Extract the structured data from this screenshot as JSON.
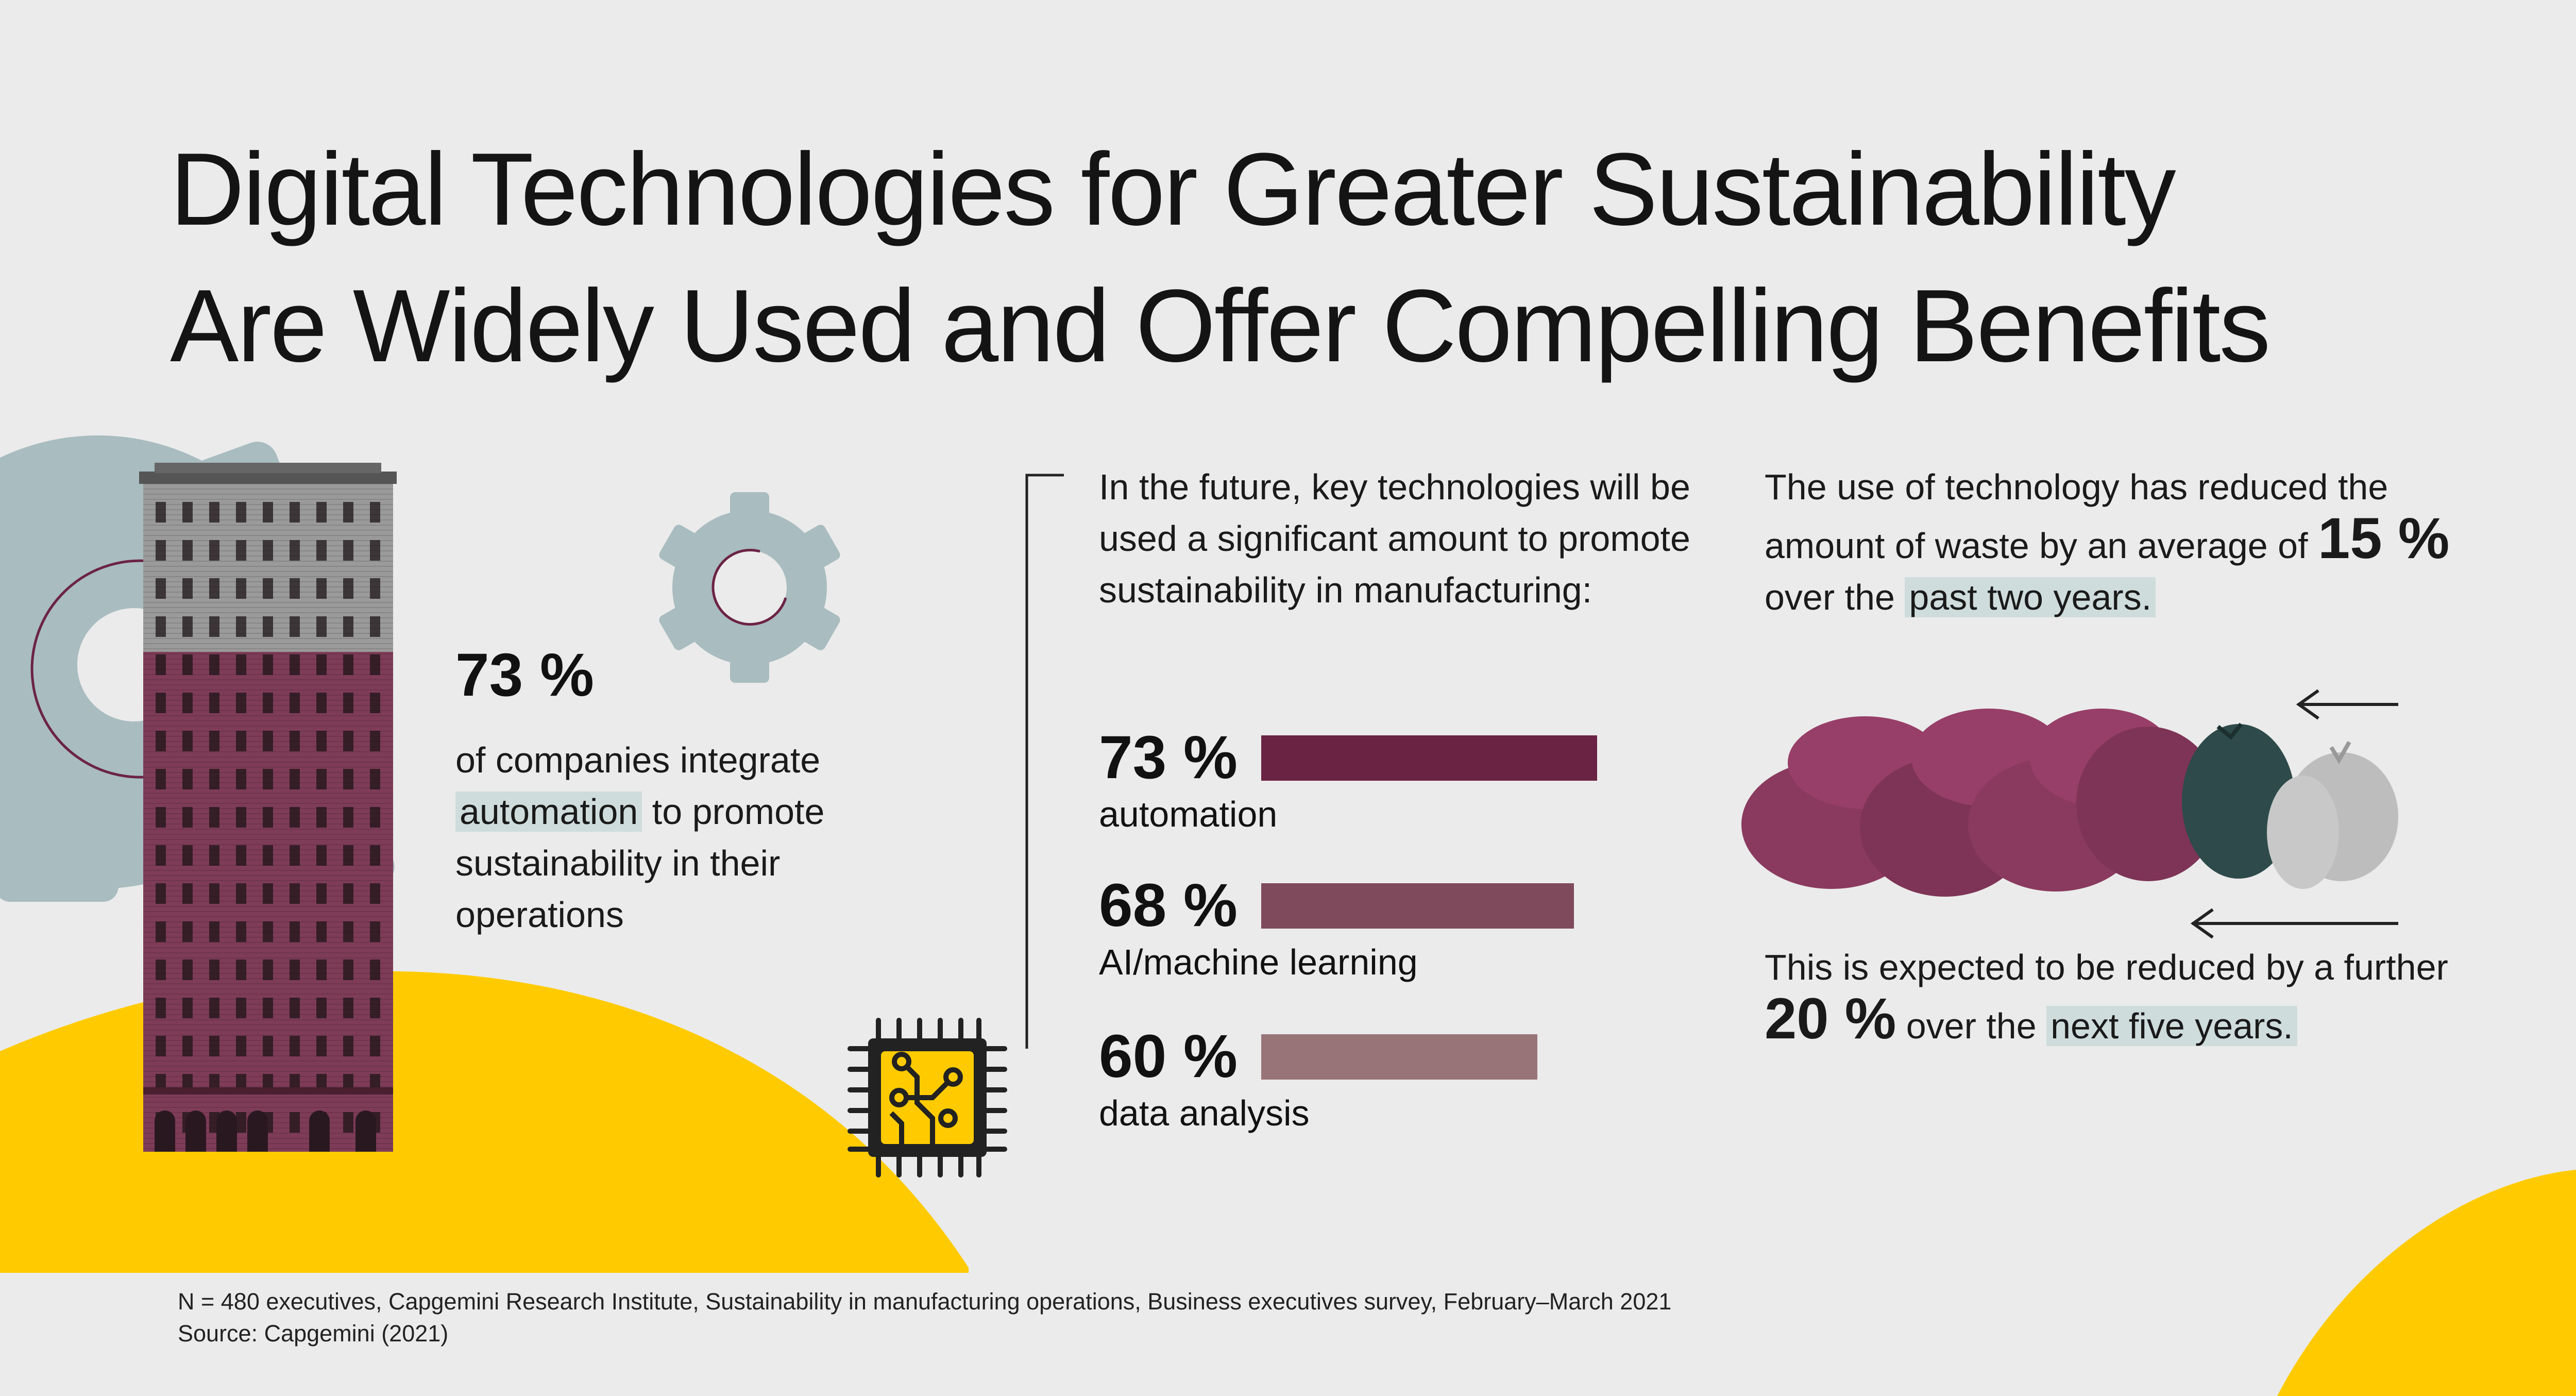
{
  "title": {
    "line1": "Digital Technologies for Greater Sustainability",
    "line2": "Are Widely Used and Offer Compelling Benefits"
  },
  "colors": {
    "background": "#ebebeb",
    "yellow": "#ffcb00",
    "maroon": "#6b2344",
    "maroon_mid": "#7e4a5c",
    "maroon_light": "#987479",
    "teal_gray": "#a9bcc0",
    "highlight": "#cfdcdc"
  },
  "icons": [
    "gear-icon",
    "building-illustration",
    "chip-icon",
    "garbage-bags-illustration",
    "arrow-left-icon"
  ],
  "left_stat": {
    "value": "73 %",
    "text_before": "of companies integrate",
    "highlight": "automation",
    "text_after": "to promote sustainability in their operations"
  },
  "intro": "In the future, key technologies will be used a significant amount to promote sustainability in manufacturing:",
  "bars": [
    {
      "pct_label": "73 %",
      "value": 73,
      "label": "automation",
      "color": "#6b2344"
    },
    {
      "pct_label": "68 %",
      "value": 68,
      "label": "AI/machine learning",
      "color": "#7e4a5c"
    },
    {
      "pct_label": "60 %",
      "value": 60,
      "label": "data analysis",
      "color": "#987479"
    }
  ],
  "waste": {
    "text_before": "The use of technology has reduced the amount of waste by an average of",
    "value": "15 %",
    "text_mid": "over the",
    "highlight": "past two years."
  },
  "future": {
    "text_before": "This is expected to be reduced by a further",
    "value": "20 %",
    "text_mid": "over the",
    "highlight": "next five years."
  },
  "footer": {
    "line1": "N = 480 executives, Capgemini Research Institute, Sustainability in manufacturing operations, Business executives survey, February–March 2021",
    "line2": "Source: Capgemini (2021)"
  }
}
